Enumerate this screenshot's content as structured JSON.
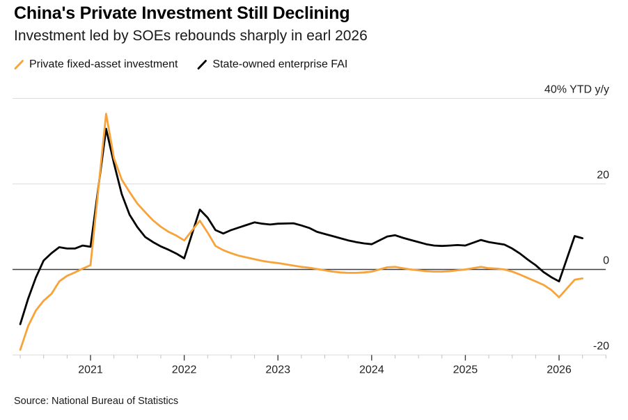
{
  "header": {
    "title": "China's Private Investment Still Declining",
    "subtitle": "Investment led by SOEs rebounds sharply in earl 2026"
  },
  "legend": [
    {
      "label": "Private fixed-asset investment",
      "color": "#F8A33A",
      "icon": "orange-slash-icon"
    },
    {
      "label": "State-owned enterprise FAI",
      "color": "#000000",
      "icon": "black-slash-icon"
    }
  ],
  "footer": {
    "source": "Source: National Bureau of Statistics"
  },
  "chart_data": {
    "type": "line",
    "title": "China's Private Investment Still Declining",
    "subtitle": "Investment led by SOEs rebounds sharply in earl 2026",
    "unit": "% YTD y/y",
    "grid": "horizontal",
    "legend_position": "top-left",
    "y_axis": {
      "side": "right",
      "ticks": [
        {
          "value": 40,
          "label": "40% YTD y/y"
        },
        {
          "value": 20,
          "label": "20"
        },
        {
          "value": 0,
          "label": "0"
        },
        {
          "value": -20,
          "label": "-20"
        }
      ],
      "zero_line": true,
      "range": [
        -24,
        42
      ]
    },
    "x_axis": {
      "major_ticks": [
        2021,
        2022,
        2023,
        2024,
        2025,
        2026
      ],
      "labels": [
        "2021",
        "2022",
        "2023",
        "2024",
        "2025",
        "2026"
      ],
      "minor_tick_step_years": 0.25,
      "range": [
        2020.17,
        2026.5
      ]
    },
    "x": [
      2020.25,
      2020.3333,
      2020.4167,
      2020.5,
      2020.5833,
      2020.6667,
      2020.75,
      2020.8333,
      2020.9167,
      2021.0,
      2021.1667,
      2021.25,
      2021.3333,
      2021.4167,
      2021.5,
      2021.5833,
      2021.6667,
      2021.75,
      2021.8333,
      2021.9167,
      2022.0,
      2022.1667,
      2022.25,
      2022.3333,
      2022.4167,
      2022.5,
      2022.5833,
      2022.6667,
      2022.75,
      2022.8333,
      2022.9167,
      2023.0,
      2023.1667,
      2023.25,
      2023.3333,
      2023.4167,
      2023.5,
      2023.5833,
      2023.6667,
      2023.75,
      2023.8333,
      2023.9167,
      2024.0,
      2024.1667,
      2024.25,
      2024.3333,
      2024.4167,
      2024.5,
      2024.5833,
      2024.6667,
      2024.75,
      2024.8333,
      2024.9167,
      2025.0,
      2025.1667,
      2025.25,
      2025.3333,
      2025.4167,
      2025.5,
      2025.5833,
      2025.6667,
      2025.75,
      2025.8333,
      2025.9167,
      2026.0,
      2026.1667,
      2026.25
    ],
    "series": [
      {
        "name": "State-owned enterprise FAI",
        "color": "#000000",
        "values": [
          -12.8,
          -6.9,
          -1.9,
          2.1,
          3.8,
          5.2,
          4.9,
          4.9,
          5.6,
          5.3,
          32.9,
          24.8,
          17.6,
          12.8,
          9.9,
          7.6,
          6.4,
          5.4,
          4.6,
          3.7,
          2.6,
          14.0,
          12.1,
          9.2,
          8.4,
          9.2,
          9.8,
          10.4,
          11.0,
          10.7,
          10.5,
          10.7,
          10.8,
          10.3,
          9.7,
          8.8,
          8.3,
          7.8,
          7.3,
          6.8,
          6.4,
          6.1,
          5.9,
          7.7,
          8.0,
          7.4,
          6.9,
          6.4,
          5.9,
          5.6,
          5.5,
          5.6,
          5.7,
          5.6,
          6.9,
          6.4,
          6.1,
          5.8,
          4.9,
          3.7,
          2.3,
          1.0,
          -0.6,
          -1.8,
          -2.8,
          7.8,
          7.3
        ]
      },
      {
        "name": "Private fixed-asset investment",
        "color": "#F8A33A",
        "values": [
          -18.8,
          -13.3,
          -9.6,
          -7.3,
          -5.7,
          -2.8,
          -1.5,
          -0.7,
          0.2,
          1.0,
          36.4,
          26.0,
          21.0,
          18.1,
          15.4,
          13.4,
          11.5,
          10.0,
          8.8,
          7.9,
          6.8,
          11.4,
          8.6,
          5.5,
          4.5,
          3.8,
          3.2,
          2.8,
          2.4,
          2.0,
          1.7,
          1.5,
          0.9,
          0.6,
          0.4,
          0.1,
          -0.2,
          -0.5,
          -0.7,
          -0.8,
          -0.8,
          -0.7,
          -0.5,
          0.5,
          0.6,
          0.3,
          0.0,
          -0.2,
          -0.4,
          -0.5,
          -0.5,
          -0.4,
          -0.2,
          0.0,
          0.6,
          0.3,
          0.2,
          0.0,
          -0.5,
          -1.2,
          -2.0,
          -2.8,
          -3.6,
          -4.8,
          -6.5,
          -2.4,
          -2.1
        ]
      }
    ]
  }
}
